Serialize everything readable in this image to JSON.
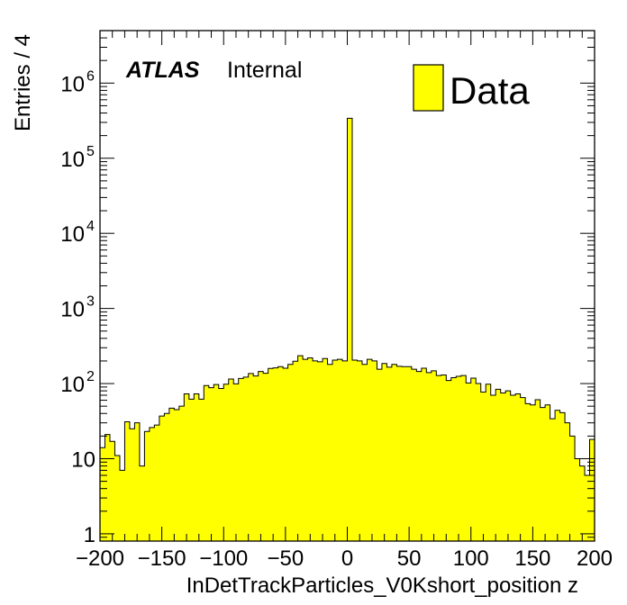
{
  "chart_data": {
    "type": "histogram",
    "y_scale": "log",
    "xlabel": "InDetTrackParticles_V0Kshort_position z",
    "ylabel": "Entries / 4",
    "xlim": [
      -200,
      200
    ],
    "ylim": [
      0.8,
      5000000
    ],
    "bin_width": 4,
    "x_ticks": [
      -200,
      -150,
      -100,
      -50,
      0,
      50,
      100,
      150,
      200
    ],
    "x_tick_labels": [
      "−200",
      "−150",
      "−100",
      "−50",
      "0",
      "50",
      "100",
      "150",
      "200"
    ],
    "y_ticks": [
      {
        "value": 1,
        "base": "1",
        "exp": ""
      },
      {
        "value": 10,
        "base": "10",
        "exp": ""
      },
      {
        "value": 100,
        "base": "10",
        "exp": "2"
      },
      {
        "value": 1000,
        "base": "10",
        "exp": "3"
      },
      {
        "value": 10000,
        "base": "10",
        "exp": "4"
      },
      {
        "value": 100000,
        "base": "10",
        "exp": "5"
      },
      {
        "value": 1000000,
        "base": "10",
        "exp": "6"
      }
    ],
    "series": [
      {
        "name": "Data",
        "color": "#ffff00",
        "edge_color": "#000000",
        "bin_starts": [
          -200,
          -196,
          -192,
          -188,
          -184,
          -180,
          -176,
          -172,
          -168,
          -164,
          -160,
          -156,
          -152,
          -148,
          -144,
          -140,
          -136,
          -132,
          -128,
          -124,
          -120,
          -116,
          -112,
          -108,
          -104,
          -100,
          -96,
          -92,
          -88,
          -84,
          -80,
          -76,
          -72,
          -68,
          -64,
          -60,
          -56,
          -52,
          -48,
          -44,
          -40,
          -36,
          -32,
          -28,
          -24,
          -20,
          -16,
          -12,
          -8,
          -4,
          0,
          4,
          8,
          12,
          16,
          20,
          24,
          28,
          32,
          36,
          40,
          44,
          48,
          52,
          56,
          60,
          64,
          68,
          72,
          76,
          80,
          84,
          88,
          92,
          96,
          100,
          104,
          108,
          112,
          116,
          120,
          124,
          128,
          132,
          136,
          140,
          144,
          148,
          152,
          156,
          160,
          164,
          168,
          172,
          176,
          180,
          184,
          188,
          192,
          196
        ],
        "values": [
          14,
          21,
          17,
          11,
          7,
          31,
          25,
          30,
          8,
          23,
          26,
          28,
          37,
          40,
          47,
          45,
          50,
          73,
          62,
          73,
          62,
          94,
          88,
          97,
          86,
          98,
          115,
          99,
          117,
          122,
          136,
          126,
          145,
          137,
          159,
          162,
          168,
          160,
          180,
          198,
          235,
          210,
          220,
          200,
          195,
          215,
          180,
          205,
          210,
          200,
          340000,
          205,
          200,
          180,
          210,
          200,
          155,
          185,
          165,
          180,
          170,
          168,
          168,
          155,
          145,
          160,
          140,
          148,
          128,
          130,
          110,
          120,
          125,
          128,
          102,
          118,
          100,
          77,
          98,
          70,
          84,
          75,
          80,
          70,
          73,
          65,
          54,
          52,
          61,
          48,
          52,
          34,
          44,
          41,
          30,
          20,
          10,
          8,
          6,
          18
        ]
      }
    ],
    "annotations": [
      {
        "text": "ATLAS",
        "style": "bold-italic"
      },
      {
        "text": "Internal",
        "style": "normal"
      }
    ],
    "legend": {
      "placement": "top-right",
      "entries": [
        {
          "label": "Data",
          "color": "#ffff00"
        }
      ]
    },
    "grid": false
  }
}
